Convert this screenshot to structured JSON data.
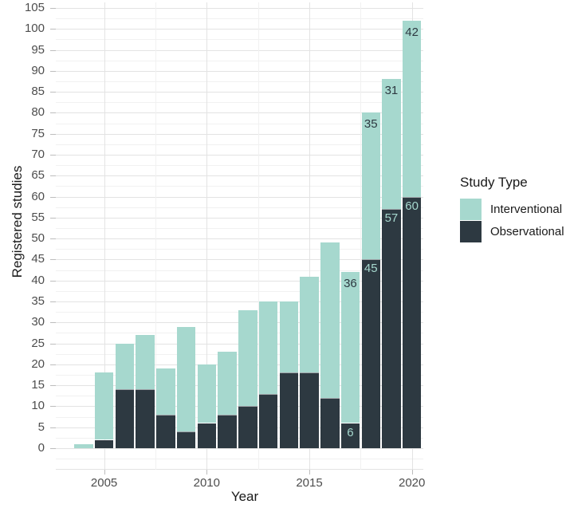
{
  "chart_data": {
    "type": "bar",
    "stacked": true,
    "title": "",
    "xlabel": "Year",
    "ylabel": "Registered studies",
    "grid": true,
    "background": "#ffffff",
    "categories": [
      2004,
      2005,
      2006,
      2007,
      2008,
      2009,
      2010,
      2011,
      2012,
      2013,
      2014,
      2015,
      2016,
      2017,
      2018,
      2019,
      2020
    ],
    "series": [
      {
        "name": "Interventional",
        "color": "#a6d8ce",
        "values": [
          1,
          16,
          11,
          13,
          11,
          25,
          14,
          15,
          23,
          22,
          17,
          23,
          37,
          36,
          35,
          31,
          42
        ],
        "labels": [
          null,
          null,
          null,
          null,
          null,
          null,
          null,
          null,
          null,
          null,
          null,
          null,
          null,
          "36",
          "35",
          "31",
          "42"
        ],
        "label_color": "#2d3941"
      },
      {
        "name": "Observational",
        "color": "#2d3941",
        "values": [
          0,
          2,
          14,
          14,
          8,
          4,
          6,
          8,
          10,
          13,
          18,
          18,
          12,
          6,
          45,
          57,
          60
        ],
        "labels": [
          null,
          null,
          null,
          null,
          null,
          null,
          null,
          null,
          null,
          null,
          null,
          null,
          null,
          "6",
          "45",
          "57",
          "60"
        ],
        "label_color": "#a6d8ce"
      }
    ],
    "stack_order": [
      "Observational",
      "Interventional"
    ],
    "totals": [
      1,
      18,
      25,
      27,
      19,
      29,
      20,
      23,
      33,
      35,
      35,
      41,
      49,
      42,
      80,
      88,
      102
    ],
    "y_axis": {
      "min": 0,
      "max": 105,
      "step": 5,
      "minor_step": 2.5,
      "ticks": [
        0,
        5,
        10,
        15,
        20,
        25,
        30,
        35,
        40,
        45,
        50,
        55,
        60,
        65,
        70,
        75,
        80,
        85,
        90,
        95,
        100,
        105
      ]
    },
    "x_axis": {
      "ticks": [
        "2005",
        "2010",
        "2015",
        "2020"
      ]
    },
    "legend": {
      "title": "Study Type",
      "position": "right"
    },
    "colors": {
      "major_gridline": "#e3e3e3",
      "minor_gridline": "#f1f1f1",
      "tick_mark": "#bdbdbd",
      "tick_label": "#4d4d4d",
      "axis_title": "#1a1a1a"
    }
  }
}
